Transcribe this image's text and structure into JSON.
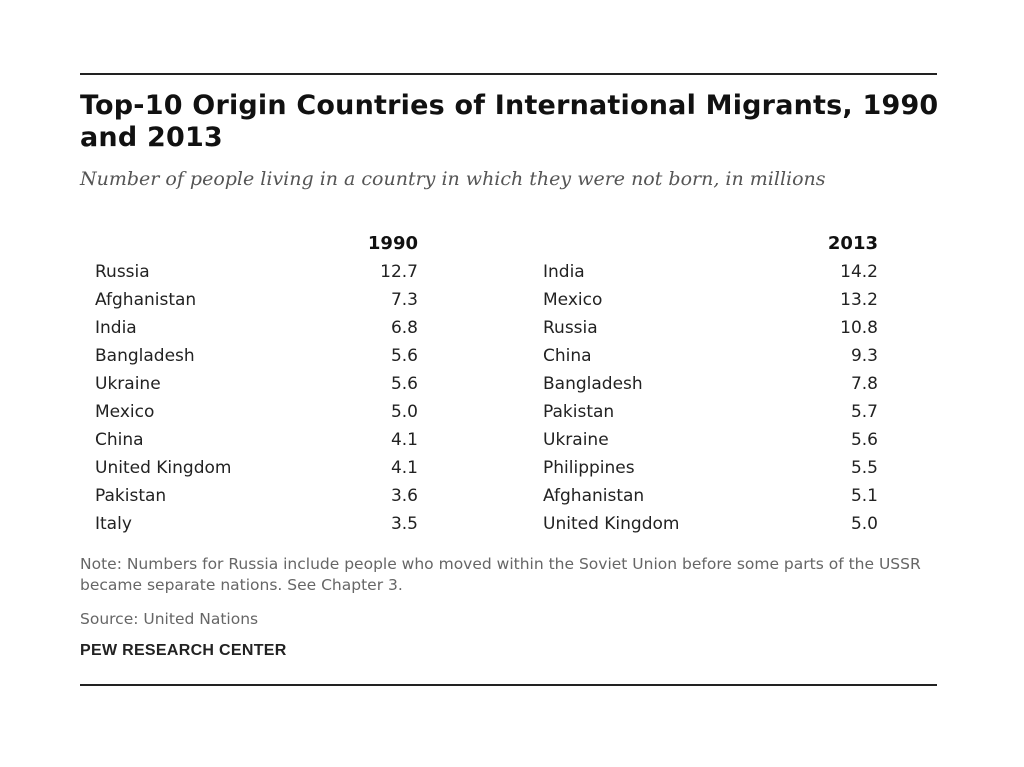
{
  "chart_data": {
    "type": "table",
    "title": "Top-10 Origin Countries of International Migrants, 1990 and 2013",
    "subtitle": "Number of people living in a country in which they were not born, in millions",
    "columns": [
      "1990",
      "2013"
    ],
    "series": [
      {
        "name": "1990",
        "rows": [
          {
            "country": "Russia",
            "value": "12.7"
          },
          {
            "country": "Afghanistan",
            "value": "7.3"
          },
          {
            "country": "India",
            "value": "6.8"
          },
          {
            "country": "Bangladesh",
            "value": "5.6"
          },
          {
            "country": "Ukraine",
            "value": "5.6"
          },
          {
            "country": "Mexico",
            "value": "5.0"
          },
          {
            "country": "China",
            "value": "4.1"
          },
          {
            "country": "United Kingdom",
            "value": "4.1"
          },
          {
            "country": "Pakistan",
            "value": "3.6"
          },
          {
            "country": "Italy",
            "value": "3.5"
          }
        ]
      },
      {
        "name": "2013",
        "rows": [
          {
            "country": "India",
            "value": "14.2"
          },
          {
            "country": "Mexico",
            "value": "13.2"
          },
          {
            "country": "Russia",
            "value": "10.8"
          },
          {
            "country": "China",
            "value": "9.3"
          },
          {
            "country": "Bangladesh",
            "value": "7.8"
          },
          {
            "country": "Pakistan",
            "value": "5.7"
          },
          {
            "country": "Ukraine",
            "value": "5.6"
          },
          {
            "country": "Philippines",
            "value": "5.5"
          },
          {
            "country": "Afghanistan",
            "value": "5.1"
          },
          {
            "country": "United Kingdom",
            "value": "5.0"
          }
        ]
      }
    ],
    "note": "Note: Numbers for Russia include people who moved within the Soviet Union before some parts of the USSR became separate nations. See Chapter 3.",
    "source": "Source: United Nations",
    "brand": "PEW RESEARCH CENTER"
  }
}
